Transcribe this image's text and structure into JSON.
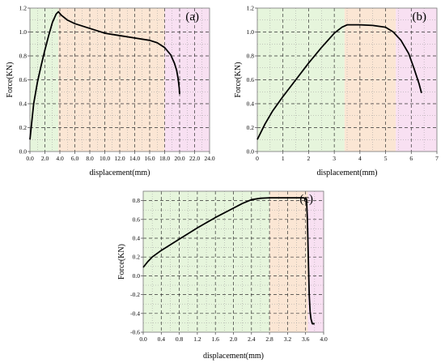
{
  "chart_data": [
    {
      "type": "line",
      "panel_label": "(a)",
      "xlabel": "displacement(mm)",
      "ylabel": "Force(KN)",
      "xlim": [
        0,
        24
      ],
      "ylim": [
        0,
        1.2
      ],
      "xticks": [
        0,
        2,
        4,
        6,
        8,
        10,
        12,
        14,
        16,
        18,
        20,
        22,
        24
      ],
      "xtick_labels": [
        "0.0",
        "2.0",
        "4.0",
        "6.0",
        "8.0",
        "10.0",
        "12.0",
        "14.0",
        "16.0",
        "18.0",
        "20.0",
        "22.0",
        "24.0"
      ],
      "yticks": [
        0,
        0.2,
        0.4,
        0.6,
        0.8,
        1.0,
        1.2
      ],
      "ytick_labels": [
        "0.0",
        "0.2",
        "0.4",
        "0.6",
        "0.8",
        "1.0",
        "1.2"
      ],
      "grid": true,
      "regions": [
        {
          "from": 0,
          "to": 3.8,
          "color": "#e6f5dc"
        },
        {
          "from": 3.8,
          "to": 18.0,
          "color": "#fbe6d4"
        },
        {
          "from": 18.0,
          "to": 24,
          "color": "#f8e0f2"
        }
      ],
      "series": [
        {
          "x": [
            0,
            0.5,
            1.0,
            1.5,
            2.0,
            2.5,
            3.0,
            3.5,
            3.8,
            4.2,
            5.0,
            6.0,
            8.0,
            10.0,
            12.0,
            14.0,
            16.0,
            17.0,
            18.0,
            18.8,
            19.3,
            19.6,
            19.8,
            19.95,
            20.0
          ],
          "y": [
            0.1,
            0.4,
            0.58,
            0.72,
            0.85,
            0.97,
            1.08,
            1.15,
            1.17,
            1.14,
            1.1,
            1.07,
            1.03,
            0.99,
            0.97,
            0.95,
            0.93,
            0.91,
            0.87,
            0.81,
            0.74,
            0.68,
            0.61,
            0.53,
            0.48
          ]
        }
      ]
    },
    {
      "type": "line",
      "panel_label": "(b)",
      "xlabel": "displacement(mm)",
      "ylabel": "Force(KN)",
      "xlim": [
        0,
        7
      ],
      "ylim": [
        0,
        1.2
      ],
      "xticks": [
        0,
        1,
        2,
        3,
        4,
        5,
        6,
        7
      ],
      "xtick_labels": [
        "0",
        "1",
        "2",
        "3",
        "4",
        "5",
        "6",
        "7"
      ],
      "yticks": [
        0,
        0.2,
        0.4,
        0.6,
        0.8,
        1.0,
        1.2
      ],
      "ytick_labels": [
        "0.0",
        "0.2",
        "0.4",
        "0.6",
        "0.8",
        "1.0",
        "1.2"
      ],
      "grid": true,
      "regions": [
        {
          "from": 0,
          "to": 3.4,
          "color": "#e6f5dc"
        },
        {
          "from": 3.4,
          "to": 5.4,
          "color": "#fbe6d4"
        },
        {
          "from": 5.4,
          "to": 7,
          "color": "#f8e0f2"
        }
      ],
      "series": [
        {
          "x": [
            0,
            0.3,
            0.6,
            1.0,
            1.5,
            2.0,
            2.5,
            3.0,
            3.3,
            3.5,
            4.0,
            4.5,
            5.0,
            5.3,
            5.6,
            5.9,
            6.1,
            6.3,
            6.4
          ],
          "y": [
            0.1,
            0.23,
            0.34,
            0.46,
            0.6,
            0.74,
            0.87,
            0.99,
            1.04,
            1.06,
            1.06,
            1.055,
            1.04,
            1.0,
            0.93,
            0.82,
            0.7,
            0.57,
            0.49
          ]
        }
      ]
    },
    {
      "type": "line",
      "panel_label": "(c)",
      "xlabel": "displacement(mm)",
      "ylabel": "Force(KN)",
      "xlim": [
        0,
        4.0
      ],
      "ylim": [
        -0.6,
        0.9
      ],
      "xticks": [
        0,
        0.4,
        0.8,
        1.2,
        1.6,
        2.0,
        2.4,
        2.8,
        3.2,
        3.6,
        4.0
      ],
      "xtick_labels": [
        "0.0",
        "0.4",
        "0.8",
        "1.2",
        "1.6",
        "2.0",
        "2.4",
        "2.8",
        "3.2",
        "3.6",
        "4.0"
      ],
      "yticks": [
        -0.6,
        -0.4,
        -0.2,
        0.0,
        0.2,
        0.4,
        0.6,
        0.8
      ],
      "ytick_labels": [
        "-0.6",
        "-0.4",
        "-0.2",
        "0.0",
        "0.2",
        "0.4",
        "0.6",
        "0.8"
      ],
      "grid": true,
      "regions": [
        {
          "from": 0,
          "to": 2.8,
          "color": "#e6f5dc"
        },
        {
          "from": 2.8,
          "to": 3.65,
          "color": "#fbe6d4"
        },
        {
          "from": 3.65,
          "to": 4.0,
          "color": "#f8e0f2"
        }
      ],
      "series": [
        {
          "x": [
            0,
            0.1,
            0.2,
            0.4,
            0.8,
            1.2,
            1.6,
            2.0,
            2.2,
            2.4,
            2.6,
            2.8,
            3.0,
            3.2,
            3.4,
            3.55,
            3.62,
            3.64,
            3.66,
            3.68,
            3.7,
            3.72,
            3.75,
            3.8
          ],
          "y": [
            0.09,
            0.15,
            0.2,
            0.27,
            0.39,
            0.51,
            0.62,
            0.72,
            0.77,
            0.81,
            0.825,
            0.83,
            0.83,
            0.83,
            0.83,
            0.83,
            0.82,
            0.6,
            0.2,
            -0.2,
            -0.38,
            -0.46,
            -0.51,
            -0.51
          ]
        }
      ]
    }
  ]
}
